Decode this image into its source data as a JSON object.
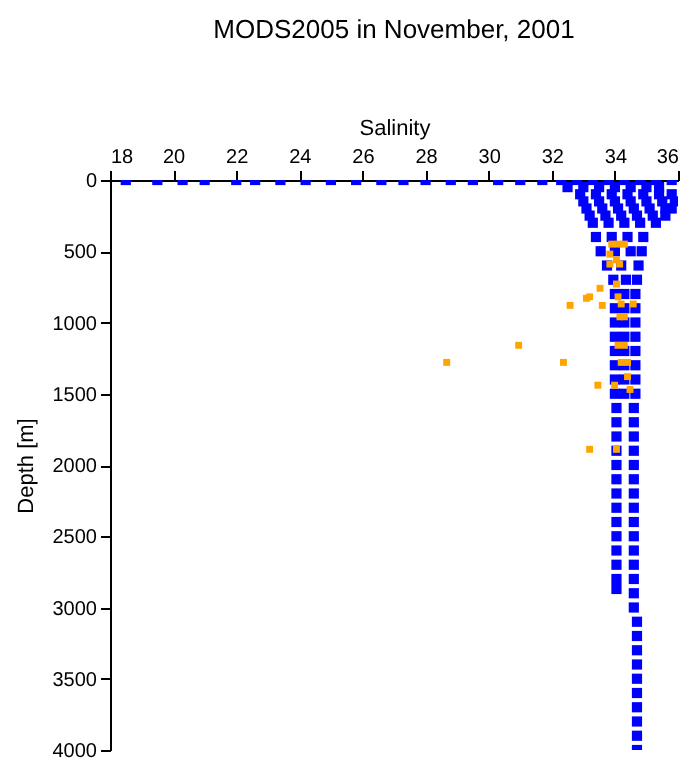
{
  "chart_data": {
    "type": "scatter",
    "title": "MODS2005 in November, 2001",
    "xlabel": "Salinity",
    "ylabel": "Depth [m]",
    "xlim": [
      18,
      36
    ],
    "xticks": [
      18,
      20,
      22,
      24,
      26,
      28,
      30,
      32,
      34,
      36
    ],
    "ylim": [
      4000,
      0
    ],
    "yticks": [
      0,
      500,
      1000,
      1500,
      2000,
      2500,
      3000,
      3500,
      4000
    ],
    "grid": false,
    "marker": "square",
    "series": [
      {
        "color": "#0000ff",
        "x": [
          18.5,
          19.5,
          20.3,
          21,
          22,
          22.6,
          23.4,
          24.2,
          25,
          25.8,
          26.6,
          27.3,
          28,
          28.8,
          29.5,
          30.3,
          31,
          31.7,
          32.3,
          32.8,
          33.3,
          33.8,
          34.3,
          34.8,
          35.3,
          35.8,
          32.5,
          33.0,
          33.5,
          34.0,
          34.5,
          35.0,
          35.4,
          32.9,
          33.4,
          33.9,
          34.4,
          34.9,
          35.4,
          35.8,
          33.0,
          33.5,
          34.0,
          34.5,
          35.0,
          35.5,
          35.9,
          33.1,
          33.6,
          34.1,
          34.6,
          35.1,
          35.6,
          35.8,
          33.2,
          33.7,
          34.2,
          34.7,
          35.2,
          35.6,
          33.3,
          33.8,
          34.3,
          34.8,
          35.3,
          33.4,
          33.9,
          34.4,
          34.9,
          33.55,
          34.0,
          34.5,
          34.85,
          33.75,
          34.2,
          34.75,
          33.95,
          34.35,
          34.7,
          34.0,
          34.3,
          34.65,
          34.0,
          34.3,
          34.65,
          34.0,
          34.3,
          34.65,
          34.0,
          34.3,
          34.65,
          34.0,
          34.3,
          34.65,
          34.0,
          34.3,
          34.65,
          34.0,
          34.3,
          34.65,
          34.0,
          34.3,
          34.65,
          34.05,
          34.6,
          34.05,
          34.6,
          34.05,
          34.6,
          34.05,
          34.6,
          34.05,
          34.6,
          34.05,
          34.6,
          34.05,
          34.6,
          34.05,
          34.6,
          34.05,
          34.6,
          34.05,
          34.6,
          34.05,
          34.6,
          34.05,
          34.6,
          34.05,
          34.6,
          34.05,
          34.6,
          34.6,
          34.7,
          34.7,
          34.7,
          34.7,
          34.7,
          34.7,
          34.7,
          34.7,
          34.7,
          34.7
        ],
        "values": [
          0,
          0,
          0,
          0,
          0,
          0,
          0,
          0,
          0,
          0,
          0,
          0,
          0,
          0,
          0,
          0,
          0,
          0,
          0,
          0,
          0,
          0,
          0,
          0,
          0,
          0,
          50,
          50,
          50,
          50,
          50,
          50,
          50,
          100,
          100,
          100,
          100,
          100,
          100,
          100,
          150,
          150,
          150,
          150,
          150,
          150,
          150,
          200,
          200,
          200,
          200,
          200,
          200,
          200,
          250,
          250,
          250,
          250,
          250,
          250,
          300,
          300,
          300,
          300,
          300,
          400,
          400,
          400,
          400,
          500,
          500,
          500,
          500,
          600,
          600,
          600,
          700,
          700,
          700,
          800,
          800,
          800,
          900,
          900,
          900,
          1000,
          1000,
          1000,
          1100,
          1100,
          1100,
          1200,
          1200,
          1200,
          1300,
          1300,
          1300,
          1400,
          1400,
          1400,
          1500,
          1500,
          1500,
          1600,
          1600,
          1700,
          1700,
          1800,
          1800,
          1900,
          1900,
          2000,
          2000,
          2100,
          2100,
          2200,
          2200,
          2300,
          2300,
          2400,
          2400,
          2500,
          2500,
          2600,
          2600,
          2700,
          2700,
          2800,
          2800,
          2870,
          2900,
          3000,
          3100,
          3200,
          3300,
          3400,
          3500,
          3600,
          3700,
          3800,
          3900,
          4000
        ]
      },
      {
        "color": "#ffa500",
        "x": [
          33.9,
          34.1,
          34.3,
          33.84,
          34.05,
          34.15,
          33.84,
          34.05,
          33.53,
          33.1,
          33.2,
          33.6,
          32.58,
          34.1,
          34.2,
          34.58,
          34.16,
          34.3,
          30.95,
          34.1,
          34.3,
          28.67,
          32.37,
          34.2,
          34.4,
          33.46,
          33.99,
          34.4,
          34.48,
          33.2,
          34.05
        ],
        "values": [
          450,
          450,
          450,
          520,
          560,
          590,
          590,
          730,
          760,
          830,
          820,
          880,
          880,
          820,
          870,
          870,
          960,
          960,
          1160,
          1160,
          1160,
          1280,
          1280,
          1280,
          1280,
          1440,
          1440,
          1380,
          1470,
          1890,
          1890
        ]
      }
    ]
  }
}
